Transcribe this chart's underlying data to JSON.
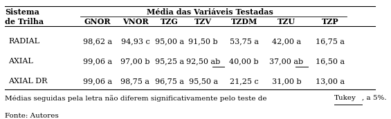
{
  "title_left": "Sistema",
  "title_left2": "de Trilha",
  "title_center": "Média das Variáveis Testadas",
  "col_headers": [
    "GNOR",
    "VNOR",
    "TZG",
    "TZV",
    "TZDM",
    "TZU",
    "TZP"
  ],
  "row_labels": [
    "RADIAL",
    "AXIAL",
    "AXIAL DR"
  ],
  "data": [
    [
      "98,62 a",
      "94,93 c",
      "95,00 a",
      "91,50 b",
      "53,75 a",
      "42,00 a",
      "16,75 a"
    ],
    [
      "99,06 a",
      "97,00 b",
      "95,25 a",
      "92,50 ab",
      "40,00 b",
      "37,00 ab",
      "16,50 a"
    ],
    [
      "99,06 a",
      "98,75 a",
      "96,75 a",
      "95,50 a",
      "21,25 c",
      "31,00 b",
      "13,00 a"
    ]
  ],
  "underlined_cells": [
    [
      1,
      3
    ],
    [
      1,
      5
    ]
  ],
  "footnote1_before": "Médias seguidas pela letra não diferem significativamente pelo teste de ",
  "footnote1_tukey": "Tukey",
  "footnote1_after": ", a 5%.",
  "footnote2": "Fonte: Autores",
  "bg_color": "#ffffff",
  "text_color": "#000000",
  "font_size": 8.0,
  "header_font_size": 8.0
}
